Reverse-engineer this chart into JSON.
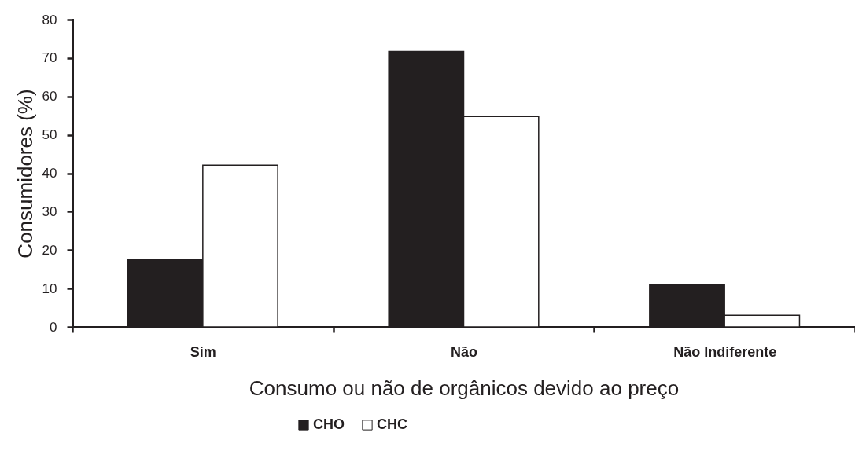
{
  "chart_data": {
    "type": "bar",
    "xlabel": "Consumo ou não de orgânicos devido ao preço",
    "ylabel": "Consumidores (%)",
    "categories": [
      "Sim",
      "Não",
      "Não Indiferente"
    ],
    "series": [
      {
        "name": "CHO",
        "color": "#231f20",
        "values": [
          17.6,
          71.7,
          10.9
        ]
      },
      {
        "name": "CHC",
        "color": "#ffffff",
        "values": [
          42.1,
          54.8,
          3.0
        ]
      }
    ],
    "ylim": [
      0,
      80
    ],
    "yticks": [
      0,
      10,
      20,
      30,
      40,
      50,
      60,
      70,
      80
    ],
    "grid": false,
    "legend": "bottom"
  }
}
